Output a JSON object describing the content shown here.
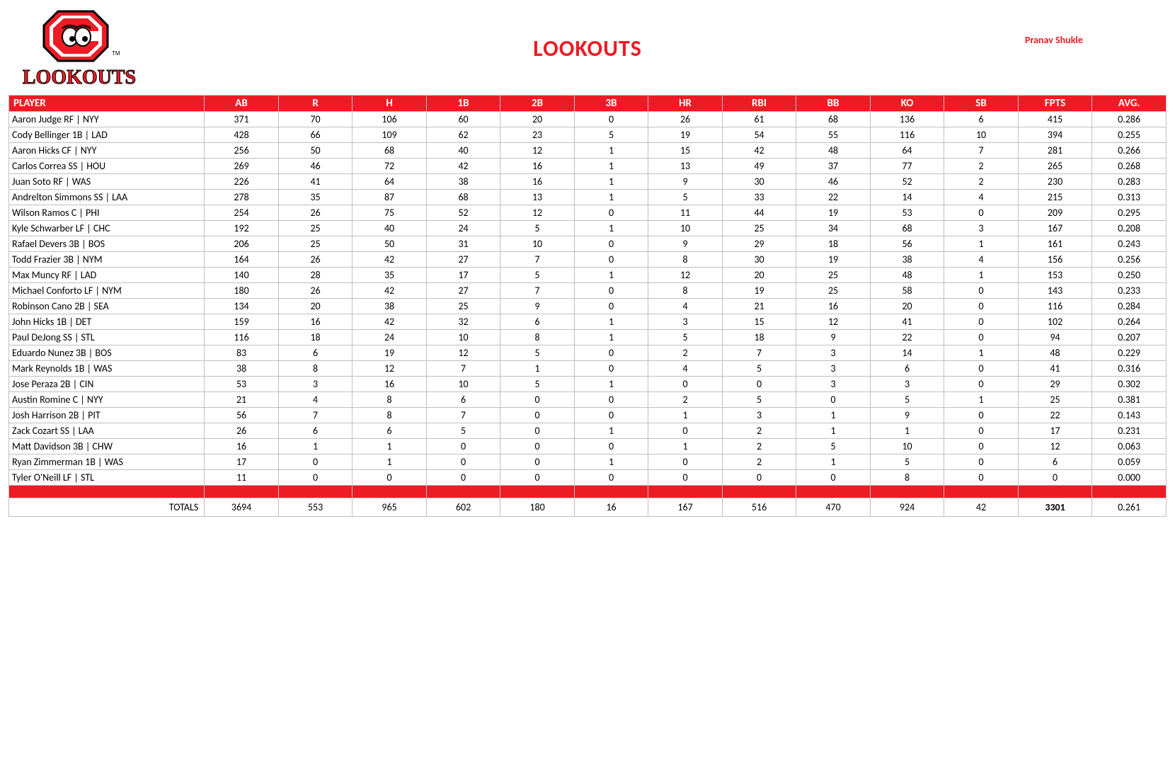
{
  "header": {
    "title": "LOOKOUTS",
    "author": "Pranav Shukle",
    "logo_text_top": "C",
    "logo_text_bottom": "LOOKOUTS",
    "logo_c_fill": "#ed1c24",
    "logo_c_stroke": "#000000",
    "logo_text_fill": "#ed1c24",
    "logo_text_stroke": "#000000"
  },
  "table": {
    "columns": [
      "PLAYER",
      "AB",
      "R",
      "H",
      "1B",
      "2B",
      "3B",
      "HR",
      "RBI",
      "BB",
      "KO",
      "SB",
      "FPTS",
      "AVG."
    ],
    "rows": [
      [
        "Aaron Judge RF | NYY",
        "371",
        "70",
        "106",
        "60",
        "20",
        "0",
        "26",
        "61",
        "68",
        "136",
        "6",
        "415",
        "0.286"
      ],
      [
        "Cody Bellinger 1B | LAD",
        "428",
        "66",
        "109",
        "62",
        "23",
        "5",
        "19",
        "54",
        "55",
        "116",
        "10",
        "394",
        "0.255"
      ],
      [
        "Aaron Hicks CF | NYY",
        "256",
        "50",
        "68",
        "40",
        "12",
        "1",
        "15",
        "42",
        "48",
        "64",
        "7",
        "281",
        "0.266"
      ],
      [
        "Carlos Correa SS | HOU",
        "269",
        "46",
        "72",
        "42",
        "16",
        "1",
        "13",
        "49",
        "37",
        "77",
        "2",
        "265",
        "0.268"
      ],
      [
        "Juan Soto RF | WAS",
        "226",
        "41",
        "64",
        "38",
        "16",
        "1",
        "9",
        "30",
        "46",
        "52",
        "2",
        "230",
        "0.283"
      ],
      [
        "Andrelton Simmons SS | LAA",
        "278",
        "35",
        "87",
        "68",
        "13",
        "1",
        "5",
        "33",
        "22",
        "14",
        "4",
        "215",
        "0.313"
      ],
      [
        "Wilson Ramos C | PHI",
        "254",
        "26",
        "75",
        "52",
        "12",
        "0",
        "11",
        "44",
        "19",
        "53",
        "0",
        "209",
        "0.295"
      ],
      [
        "Kyle Schwarber LF | CHC",
        "192",
        "25",
        "40",
        "24",
        "5",
        "1",
        "10",
        "25",
        "34",
        "68",
        "3",
        "167",
        "0.208"
      ],
      [
        "Rafael Devers 3B | BOS",
        "206",
        "25",
        "50",
        "31",
        "10",
        "0",
        "9",
        "29",
        "18",
        "56",
        "1",
        "161",
        "0.243"
      ],
      [
        "Todd Frazier 3B | NYM",
        "164",
        "26",
        "42",
        "27",
        "7",
        "0",
        "8",
        "30",
        "19",
        "38",
        "4",
        "156",
        "0.256"
      ],
      [
        "Max Muncy RF | LAD",
        "140",
        "28",
        "35",
        "17",
        "5",
        "1",
        "12",
        "20",
        "25",
        "48",
        "1",
        "153",
        "0.250"
      ],
      [
        "Michael Conforto LF | NYM",
        "180",
        "26",
        "42",
        "27",
        "7",
        "0",
        "8",
        "19",
        "25",
        "58",
        "0",
        "143",
        "0.233"
      ],
      [
        "Robinson Cano 2B | SEA",
        "134",
        "20",
        "38",
        "25",
        "9",
        "0",
        "4",
        "21",
        "16",
        "20",
        "0",
        "116",
        "0.284"
      ],
      [
        "John Hicks 1B | DET",
        "159",
        "16",
        "42",
        "32",
        "6",
        "1",
        "3",
        "15",
        "12",
        "41",
        "0",
        "102",
        "0.264"
      ],
      [
        "Paul DeJong SS | STL",
        "116",
        "18",
        "24",
        "10",
        "8",
        "1",
        "5",
        "18",
        "9",
        "22",
        "0",
        "94",
        "0.207"
      ],
      [
        "Eduardo Nunez 3B | BOS",
        "83",
        "6",
        "19",
        "12",
        "5",
        "0",
        "2",
        "7",
        "3",
        "14",
        "1",
        "48",
        "0.229"
      ],
      [
        "Mark Reynolds 1B | WAS",
        "38",
        "8",
        "12",
        "7",
        "1",
        "0",
        "4",
        "5",
        "3",
        "6",
        "0",
        "41",
        "0.316"
      ],
      [
        "Jose Peraza 2B | CIN",
        "53",
        "3",
        "16",
        "10",
        "5",
        "1",
        "0",
        "0",
        "3",
        "3",
        "0",
        "29",
        "0.302"
      ],
      [
        "Austin Romine C | NYY",
        "21",
        "4",
        "8",
        "6",
        "0",
        "0",
        "2",
        "5",
        "0",
        "5",
        "1",
        "25",
        "0.381"
      ],
      [
        "Josh Harrison 2B | PIT",
        "56",
        "7",
        "8",
        "7",
        "0",
        "0",
        "1",
        "3",
        "1",
        "9",
        "0",
        "22",
        "0.143"
      ],
      [
        "Zack Cozart SS | LAA",
        "26",
        "6",
        "6",
        "5",
        "0",
        "1",
        "0",
        "2",
        "1",
        "1",
        "0",
        "17",
        "0.231"
      ],
      [
        "Matt Davidson 3B | CHW",
        "16",
        "1",
        "1",
        "0",
        "0",
        "0",
        "1",
        "2",
        "5",
        "10",
        "0",
        "12",
        "0.063"
      ],
      [
        "Ryan Zimmerman 1B | WAS",
        "17",
        "0",
        "1",
        "0",
        "0",
        "1",
        "0",
        "2",
        "1",
        "5",
        "0",
        "6",
        "0.059"
      ],
      [
        "Tyler O'Neill LF | STL",
        "11",
        "0",
        "0",
        "0",
        "0",
        "0",
        "0",
        "0",
        "0",
        "8",
        "0",
        "0",
        "0.000"
      ]
    ],
    "totals": [
      "TOTALS",
      "3694",
      "553",
      "965",
      "602",
      "180",
      "16",
      "167",
      "516",
      "470",
      "924",
      "42",
      "3301",
      "0.261"
    ]
  },
  "style": {
    "accent": "#ed1c24",
    "border": "#bfbfbf",
    "bg": "#ffffff",
    "header_text": "#ffffff",
    "body_text": "#000000",
    "title_fontsize": 32,
    "cell_fontsize": 14,
    "header_fontsize": 15
  }
}
